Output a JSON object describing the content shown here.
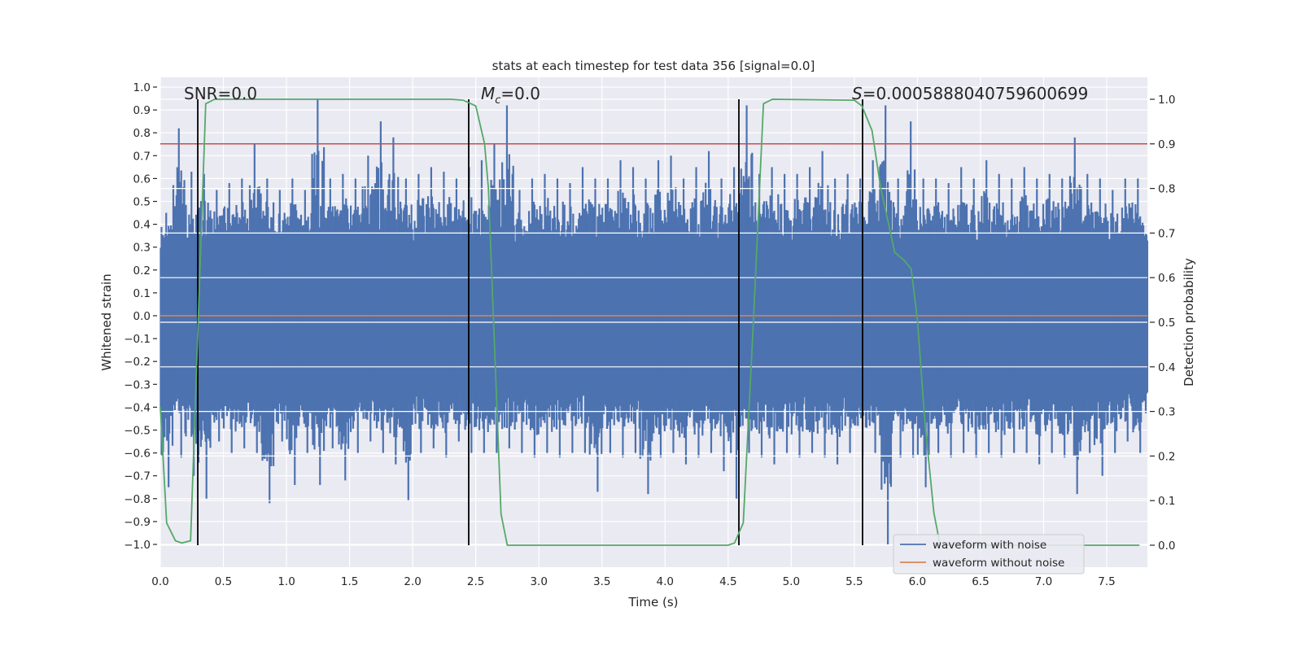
{
  "chart_data": {
    "type": "line",
    "title": "stats at each timestep for test data 356 [signal=0.0]",
    "xlabel": "Time (s)",
    "ylabel": "Whitened strain",
    "ylabel_right": "Detection probability",
    "xlim": [
      0,
      7.82
    ],
    "ylim": [
      -1.1,
      1.05
    ],
    "ylim_right": [
      -0.049,
      1.049
    ],
    "grid": true,
    "legend_placement": "lower-right",
    "x_ticks": [
      "0.0",
      "0.5",
      "1.0",
      "1.5",
      "2.0",
      "2.5",
      "3.0",
      "3.5",
      "4.0",
      "4.5",
      "5.0",
      "5.5",
      "6.0",
      "6.5",
      "7.0",
      "7.5"
    ],
    "y_ticks": [
      "1.0",
      "0.9",
      "0.8",
      "0.7",
      "0.6",
      "0.5",
      "0.4",
      "0.3",
      "0.2",
      "0.1",
      "0.0",
      "−0.1",
      "−0.2",
      "−0.3",
      "−0.4",
      "−0.5",
      "−0.6",
      "−0.7",
      "−0.8",
      "−0.9",
      "−1.0"
    ],
    "y_ticks_right": [
      "1.0",
      "0.9",
      "0.8",
      "0.7",
      "0.6",
      "0.5",
      "0.4",
      "0.3",
      "0.2",
      "0.1",
      "0.0"
    ],
    "series": [
      {
        "name": "waveform with noise",
        "color": "#4c72b0",
        "envelope_bin_width_s": 0.1,
        "upper": [
          0.45,
          0.82,
          0.63,
          0.62,
          0.55,
          0.58,
          0.6,
          0.75,
          0.6,
          0.55,
          0.6,
          0.55,
          0.95,
          0.6,
          0.62,
          0.6,
          0.7,
          0.85,
          0.78,
          0.6,
          0.62,
          0.65,
          0.63,
          0.6,
          0.65,
          0.68,
          0.75,
          0.92,
          0.55,
          0.6,
          0.62,
          0.6,
          0.58,
          0.65,
          0.6,
          0.6,
          0.68,
          0.65,
          0.6,
          0.68,
          0.7,
          0.6,
          0.65,
          0.72,
          0.6,
          0.65,
          0.92,
          0.62,
          0.65,
          0.62,
          0.62,
          0.65,
          0.72,
          0.6,
          0.62,
          0.6,
          0.68,
          0.92,
          0.6,
          0.85,
          0.6,
          0.6,
          0.58,
          0.65,
          0.6,
          0.68,
          0.62,
          0.6,
          0.65,
          0.6,
          0.62,
          0.6,
          0.78,
          0.62,
          0.6,
          0.55,
          0.6,
          0.6,
          0.5
        ],
        "lower": [
          -0.75,
          -0.62,
          -0.7,
          -0.8,
          -0.55,
          -0.6,
          -0.58,
          -0.6,
          -0.82,
          -0.55,
          -0.74,
          -0.6,
          -0.74,
          -0.58,
          -0.72,
          -0.6,
          -0.55,
          -0.6,
          -0.65,
          -0.81,
          -0.6,
          -0.58,
          -0.62,
          -0.55,
          -0.6,
          -0.6,
          -0.6,
          -0.58,
          -0.6,
          -0.62,
          -0.6,
          -0.62,
          -0.6,
          -0.6,
          -0.77,
          -0.6,
          -0.62,
          -0.6,
          -0.78,
          -0.62,
          -0.6,
          -0.65,
          -0.62,
          -0.6,
          -0.68,
          -0.8,
          -0.6,
          -0.62,
          -0.65,
          -0.6,
          -0.62,
          -0.6,
          -0.62,
          -0.65,
          -0.6,
          -0.62,
          -0.6,
          -1.0,
          -0.62,
          -0.62,
          -0.75,
          -0.6,
          -0.62,
          -0.6,
          -0.62,
          -0.6,
          -0.62,
          -0.6,
          -0.6,
          -0.65,
          -0.6,
          -0.62,
          -0.78,
          -0.6,
          -0.7,
          -0.6,
          -0.55,
          -0.6,
          -0.5
        ]
      },
      {
        "name": "waveform without noise",
        "color": "#dd8452",
        "value": 0.0
      },
      {
        "axis": "right",
        "color": "#55a868",
        "x": [
          0,
          0.05,
          0.12,
          0.17,
          0.24,
          0.3,
          0.36,
          0.43,
          2.3,
          2.4,
          2.5,
          2.57,
          2.6,
          2.7,
          2.75,
          4.5,
          4.55,
          4.62,
          4.7,
          4.78,
          4.85,
          5.5,
          5.56,
          5.64,
          5.71,
          5.82,
          5.89,
          5.95,
          6.0,
          6.06,
          6.13,
          6.18,
          7.76
        ],
        "y": [
          0.31,
          0.05,
          0.01,
          0.005,
          0.01,
          0.5,
          0.99,
          1.0,
          1.0,
          0.998,
          0.985,
          0.9,
          0.8,
          0.07,
          0.0,
          0.0,
          0.005,
          0.05,
          0.5,
          0.99,
          1.0,
          0.998,
          0.985,
          0.93,
          0.8,
          0.657,
          0.64,
          0.62,
          0.505,
          0.274,
          0.073,
          0.0,
          0.0
        ]
      }
    ],
    "threshold": {
      "axis": "right",
      "value": 0.9,
      "color": "#c44e52"
    },
    "vlines": {
      "x": [
        0.297,
        2.444,
        4.585,
        5.565
      ],
      "ymin_right": 0.0,
      "ymax_right": 1.0,
      "color": "#000000"
    },
    "annotations": {
      "snr": "SNR=0.0",
      "mc_symbol": "M",
      "mc_sub": "c",
      "mc_value": "=0.0",
      "s_symbol": "S",
      "s_value": "=0.0005888040759600699"
    }
  }
}
